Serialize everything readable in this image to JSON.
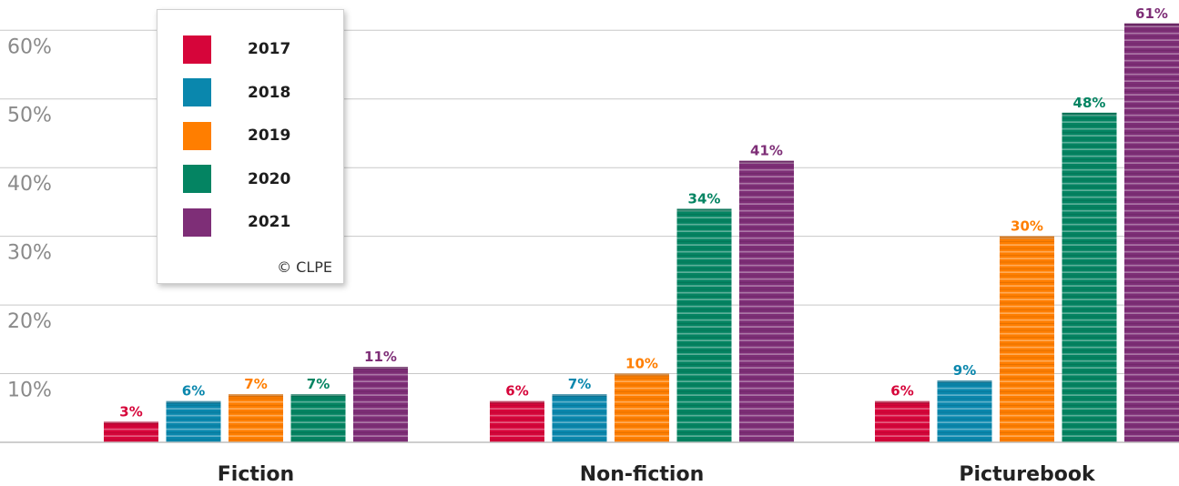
{
  "chart_data": {
    "type": "bar",
    "categories": [
      "Fiction",
      "Non-fiction",
      "Picturebook"
    ],
    "series": [
      {
        "name": "2017",
        "color": "#d6053a",
        "values": [
          3,
          6,
          6
        ]
      },
      {
        "name": "2018",
        "color": "#0a87ad",
        "values": [
          6,
          7,
          9
        ]
      },
      {
        "name": "2019",
        "color": "#ff7e00",
        "values": [
          7,
          10,
          30
        ]
      },
      {
        "name": "2020",
        "color": "#048462",
        "values": [
          7,
          34,
          48
        ]
      },
      {
        "name": "2021",
        "color": "#7e2e77",
        "values": [
          11,
          41,
          61
        ]
      }
    ],
    "value_labels": [
      [
        "3%",
        "6%",
        "6%"
      ],
      [
        "6%",
        "7%",
        "9%"
      ],
      [
        "7%",
        "10%",
        "30%"
      ],
      [
        "7%",
        "34%",
        "48%"
      ],
      [
        "11%",
        "41%",
        "61%"
      ]
    ],
    "yticks": [
      10,
      20,
      30,
      40,
      50,
      60
    ],
    "ytick_labels": [
      "10%",
      "20%",
      "30%",
      "40%",
      "50%",
      "60%"
    ],
    "ylim": [
      0,
      60
    ],
    "grid": true,
    "legend_placement": "top-left",
    "legend_credit": "© CLPE"
  }
}
